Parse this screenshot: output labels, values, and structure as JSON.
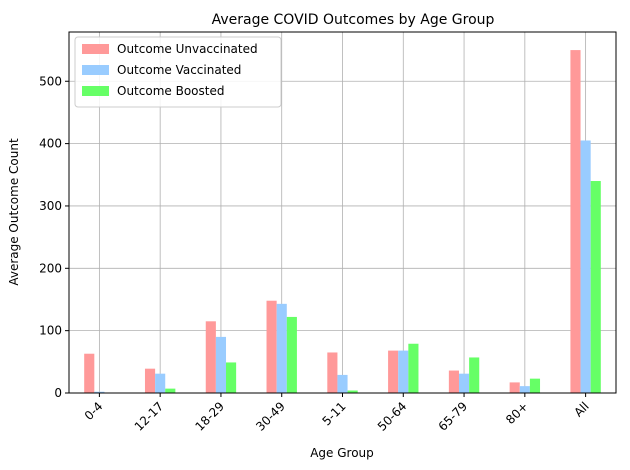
{
  "chart_data": {
    "type": "bar",
    "title": "Average COVID Outcomes by Age Group",
    "xlabel": "Age Group",
    "ylabel": "Average Outcome Count",
    "categories": [
      "0-4",
      "12-17",
      "18-29",
      "30-49",
      "5-11",
      "50-64",
      "65-79",
      "80+",
      "All"
    ],
    "series": [
      {
        "name": "Outcome Unvaccinated",
        "color": "#ff9999",
        "values": [
          63,
          39,
          115,
          148,
          65,
          68,
          36,
          17,
          550
        ]
      },
      {
        "name": "Outcome Vaccinated",
        "color": "#99ccff",
        "values": [
          2,
          31,
          90,
          143,
          29,
          68,
          31,
          11,
          405
        ]
      },
      {
        "name": "Outcome Boosted",
        "color": "#66ff66",
        "values": [
          0.5,
          7,
          49,
          122,
          4,
          79,
          57,
          23,
          340
        ]
      }
    ],
    "ylim": [
      0,
      579
    ],
    "yticks": [
      0,
      100,
      200,
      300,
      400,
      500
    ],
    "grid": true,
    "legend_position": "top-left"
  }
}
